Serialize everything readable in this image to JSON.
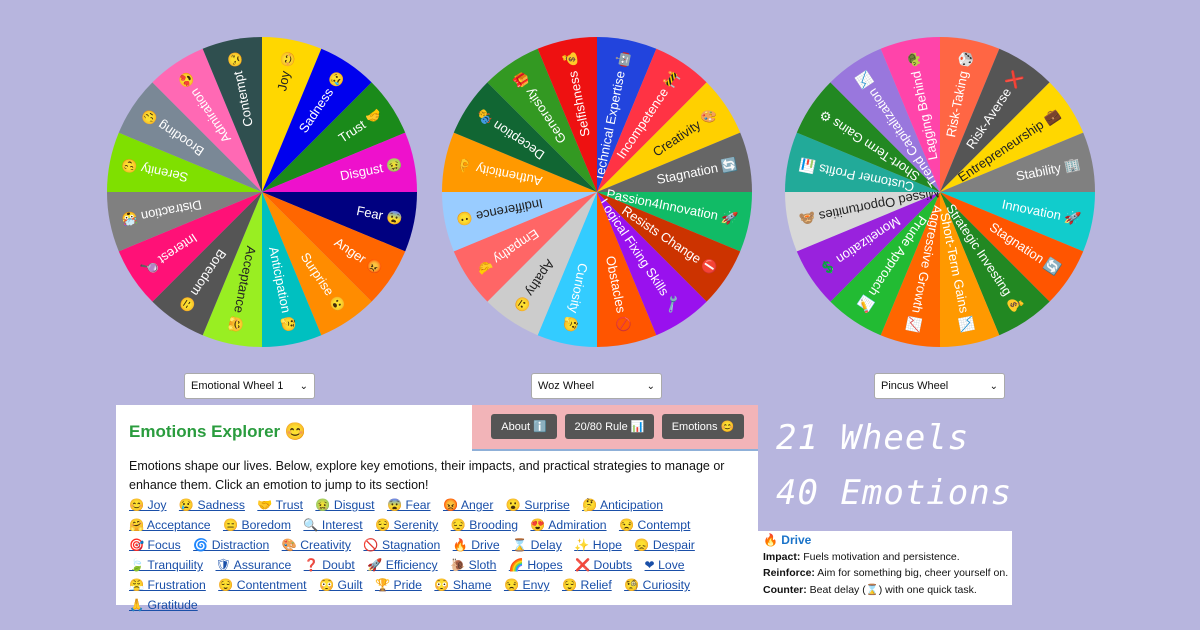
{
  "wheels": [
    {
      "id": "emotional",
      "select_label": "Emotional Wheel 1",
      "segments": [
        {
          "label": "Joy",
          "icon": "😊",
          "color": "#ffd700"
        },
        {
          "label": "Sadness",
          "icon": "😢",
          "color": "#0000ee"
        },
        {
          "label": "Trust",
          "icon": "🤝",
          "color": "#1a8a1a"
        },
        {
          "label": "Disgust",
          "icon": "🤢",
          "color": "#ee11cc"
        },
        {
          "label": "Fear",
          "icon": "😨",
          "color": "#000080"
        },
        {
          "label": "Anger",
          "icon": "😡",
          "color": "#ff6600"
        },
        {
          "label": "Surprise",
          "icon": "😮",
          "color": "#ff8c00"
        },
        {
          "label": "Anticipation",
          "icon": "🤔",
          "color": "#00c0c0"
        },
        {
          "label": "Acceptance",
          "icon": "🤗",
          "color": "#99ee22"
        },
        {
          "label": "Boredom",
          "icon": "😑",
          "color": "#555555"
        },
        {
          "label": "Interest",
          "icon": "🔍",
          "color": "#ff1177"
        },
        {
          "label": "Distraction",
          "icon": "🤯",
          "color": "#808080"
        },
        {
          "label": "Serenity",
          "icon": "😌",
          "color": "#7fe000"
        },
        {
          "label": "Brooding",
          "icon": "😔",
          "color": "#7a8896"
        },
        {
          "label": "Admiration",
          "icon": "😍",
          "color": "#ff69b4"
        },
        {
          "label": "Contempt",
          "icon": "😒",
          "color": "#2f4f4f"
        }
      ]
    },
    {
      "id": "woz",
      "select_label": "Woz Wheel",
      "segments": [
        {
          "label": "Technical Expertise",
          "icon": "🤖",
          "color": "#2244dd"
        },
        {
          "label": "Incompetence",
          "icon": "🚧",
          "color": "#ff3344"
        },
        {
          "label": "Creativity",
          "icon": "🎨",
          "color": "#ffd000"
        },
        {
          "label": "Stagnation",
          "icon": "🔄",
          "color": "#666666"
        },
        {
          "label": "Passion4Innovation",
          "icon": "🚀",
          "color": "#11bb66"
        },
        {
          "label": "Resists Change",
          "icon": "⛔",
          "color": "#cc3300"
        },
        {
          "label": "Logical Fixing Skills",
          "icon": "🔧",
          "color": "#9911ee"
        },
        {
          "label": "Obstacles",
          "icon": "🚫",
          "color": "#ff5500"
        },
        {
          "label": "Curiosity",
          "icon": "🤔",
          "color": "#33ccff"
        },
        {
          "label": "Apathy",
          "icon": "😐",
          "color": "#cccccc"
        },
        {
          "label": "Empathy",
          "icon": "🤝",
          "color": "#ff6666"
        },
        {
          "label": "Indifference",
          "icon": "😶",
          "color": "#99ccff"
        },
        {
          "label": "Authenticity",
          "icon": "👌",
          "color": "#ff9900"
        },
        {
          "label": "Deception",
          "icon": "🎭",
          "color": "#116633"
        },
        {
          "label": "Generosity",
          "icon": "🎁",
          "color": "#339922"
        },
        {
          "label": "Selfishness",
          "icon": "💰",
          "color": "#ee1111"
        }
      ]
    },
    {
      "id": "pincus",
      "select_label": "Pincus Wheel",
      "segments": [
        {
          "label": "Risk-Taking",
          "icon": "🎲",
          "color": "#ff6644"
        },
        {
          "label": "Risk-Averse",
          "icon": "❌",
          "color": "#555555"
        },
        {
          "label": "Entrepreneurship",
          "icon": "💼",
          "color": "#ffd700"
        },
        {
          "label": "Stability",
          "icon": "🏢",
          "color": "#808080"
        },
        {
          "label": "Innovation",
          "icon": "🚀",
          "color": "#11cccc"
        },
        {
          "label": "Stagnation",
          "icon": "🔄",
          "color": "#ff5500"
        },
        {
          "label": "Strategic Investing",
          "icon": "💰",
          "color": "#228822"
        },
        {
          "label": "Short-Term Gains",
          "icon": "📉",
          "color": "#ff9900"
        },
        {
          "label": "Aggressive Growth",
          "icon": "📈",
          "color": "#ff6600"
        },
        {
          "label": "Prude Approach",
          "icon": "📝",
          "color": "#22bb33"
        },
        {
          "label": "Monetization",
          "icon": "💲",
          "color": "#9922dd"
        },
        {
          "label": "Missed Opportunities",
          "icon": "🙈",
          "color": "#d8d8d8"
        },
        {
          "label": "Customer Profits",
          "icon": "📊",
          "color": "#22aa99"
        },
        {
          "label": "Short-Term Gains",
          "icon": "⚙",
          "color": "#228822"
        },
        {
          "label": "Trend Capitalization",
          "icon": "📉",
          "color": "#9977dd"
        },
        {
          "label": "Lagging Behind",
          "icon": "🐢",
          "color": "#ff44aa"
        }
      ]
    }
  ],
  "explorer": {
    "title": "Emotions Explorer 😊",
    "tabs": [
      "About ℹ️",
      "20/80 Rule 📊",
      "Emotions 😊"
    ],
    "intro": "Emotions shape our lives. Below, explore key emotions, their impacts, and practical strategies to manage or enhance them. Click an emotion to jump to its section!",
    "links": [
      "😊 Joy",
      "😢 Sadness",
      "🤝 Trust",
      "🤢 Disgust",
      "😨 Fear",
      "😡 Anger",
      "😮 Surprise",
      "🤔 Anticipation",
      "🤗 Acceptance",
      "😑 Boredom",
      "🔍 Interest",
      "😌 Serenity",
      "😔 Brooding",
      "😍 Admiration",
      "😒 Contempt",
      "🎯 Focus",
      "🌀 Distraction",
      "🎨 Creativity",
      "🚫 Stagnation",
      "🔥 Drive",
      "⌛ Delay",
      "✨ Hope",
      "😞 Despair",
      "🍃 Tranquility",
      "🛡 Assurance",
      "❓ Doubt",
      "🚀 Efficiency",
      "🐌 Sloth",
      "🌈 Hopes",
      "❌ Doubts",
      "❤ Love",
      "😤 Frustration",
      "😌 Contentment",
      "😳 Guilt",
      "🏆 Pride",
      "😳 Shame",
      "😒 Envy",
      "😌 Relief",
      "🧐 Curiosity",
      "🙏 Gratitude"
    ]
  },
  "headline": {
    "line1": "21 Wheels",
    "line2": "40 Emotions"
  },
  "detail": {
    "title": "🔥 Drive",
    "impact_label": "Impact:",
    "impact_text": " Fuels motivation and persistence.",
    "reinforce_label": "Reinforce:",
    "reinforce_text": " Aim for something big, cheer yourself on.",
    "counter_label": "Counter:",
    "counter_text": " Beat delay (⌛) with one quick task."
  }
}
